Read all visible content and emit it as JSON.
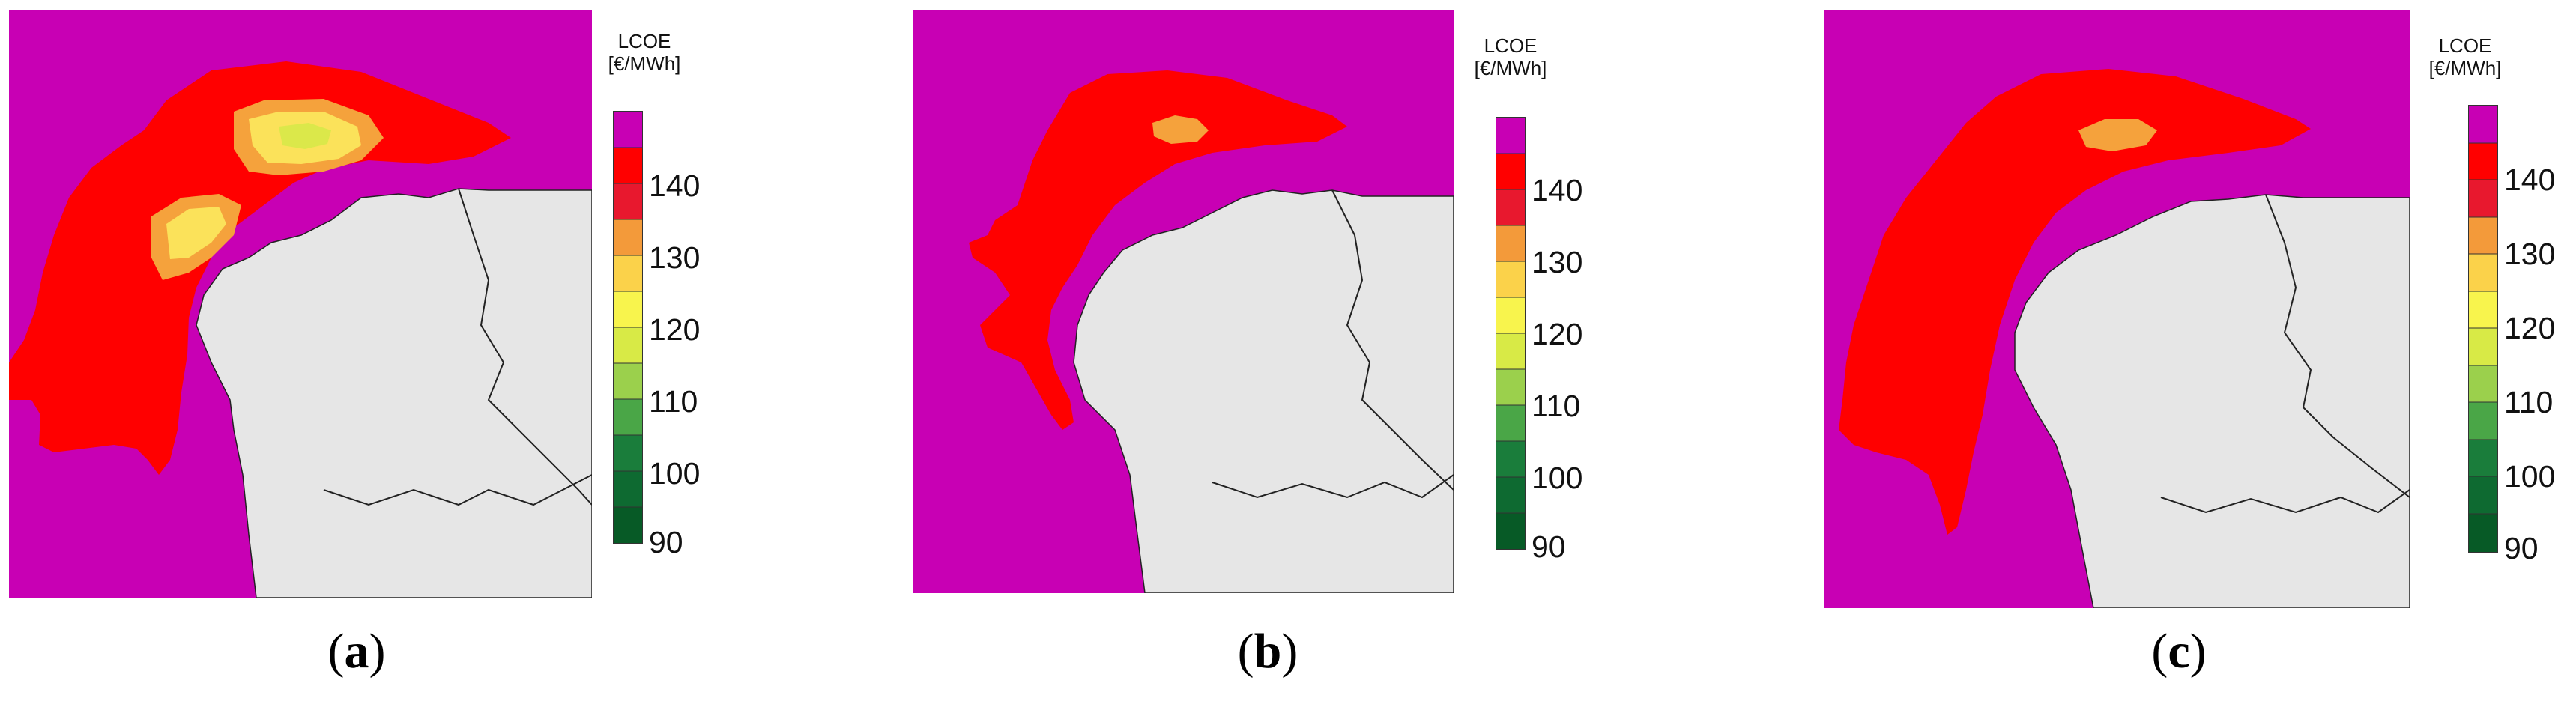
{
  "legend": {
    "title_line1": "LCOE",
    "title_line2": "[€/MWh]",
    "ticks": [
      "140",
      "130",
      "120",
      "110",
      "100",
      "90"
    ],
    "band_colors": [
      "#c800b4",
      "#ff0000",
      "#e8182e",
      "#f39a3a",
      "#fbd24a",
      "#f8f44d",
      "#d8ea46",
      "#9bd04c",
      "#4aa647",
      "#1a7d3b",
      "#0e6a31",
      "#075a26"
    ]
  },
  "colors": {
    "sea_over_150": "#c800b4",
    "lcoe_140": "#ff0000",
    "lcoe_130": "#f5a23c",
    "lcoe_120": "#fbe25a",
    "lcoe_115": "#dbe84a",
    "land": "#e6e6e6",
    "border": "#222222"
  },
  "panels": [
    {
      "caption_open": "(",
      "caption_letter": "a",
      "caption_close": ")"
    },
    {
      "caption_open": "(",
      "caption_letter": "b",
      "caption_close": ")"
    },
    {
      "caption_open": "(",
      "caption_letter": "c",
      "caption_close": ")"
    }
  ]
}
